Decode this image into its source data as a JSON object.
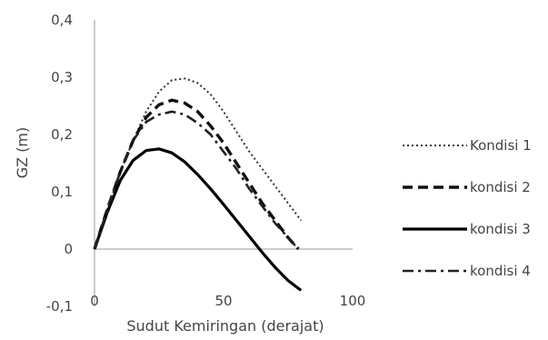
{
  "chart_data": {
    "type": "line",
    "title": "",
    "xlabel": "Sudut Kemiringan (derajat)",
    "ylabel": "GZ (m)",
    "xlim": [
      0,
      100
    ],
    "ylim": [
      -0.1,
      0.4
    ],
    "x_ticks": [
      0,
      50,
      100
    ],
    "x_tick_labels": [
      "0",
      "50",
      "100"
    ],
    "y_ticks": [
      -0.1,
      0,
      0.1,
      0.2,
      0.3,
      0.4
    ],
    "y_tick_labels": [
      "-0,1",
      "0",
      "0,1",
      "0,2",
      "0,3",
      "0,4"
    ],
    "grid": false,
    "legend_position": "right",
    "series": [
      {
        "name": "Kondisi 1",
        "style": "dotted",
        "color": "#333333",
        "x": [
          0,
          5,
          10,
          15,
          20,
          25,
          30,
          35,
          40,
          45,
          50,
          55,
          60,
          65,
          70,
          75,
          80
        ],
        "y": [
          0.0,
          0.07,
          0.135,
          0.19,
          0.24,
          0.275,
          0.295,
          0.298,
          0.29,
          0.27,
          0.24,
          0.205,
          0.17,
          0.14,
          0.11,
          0.08,
          0.05
        ]
      },
      {
        "name": "kondisi 2",
        "style": "dashed",
        "color": "#111111",
        "x": [
          0,
          5,
          10,
          15,
          20,
          25,
          30,
          35,
          40,
          45,
          50,
          55,
          60,
          65,
          70,
          75,
          79
        ],
        "y": [
          0.0,
          0.07,
          0.135,
          0.19,
          0.23,
          0.252,
          0.26,
          0.255,
          0.24,
          0.215,
          0.185,
          0.15,
          0.115,
          0.08,
          0.05,
          0.02,
          0.0
        ]
      },
      {
        "name": "kondisi 3",
        "style": "solid",
        "color": "#000000",
        "x": [
          0,
          5,
          10,
          15,
          20,
          25,
          30,
          35,
          40,
          45,
          50,
          55,
          60,
          65,
          70,
          75,
          80
        ],
        "y": [
          0.0,
          0.065,
          0.12,
          0.155,
          0.172,
          0.175,
          0.168,
          0.152,
          0.13,
          0.105,
          0.078,
          0.05,
          0.022,
          -0.006,
          -0.032,
          -0.055,
          -0.072
        ]
      },
      {
        "name": "kondisi 4",
        "style": "dashdot",
        "color": "#222222",
        "x": [
          0,
          5,
          10,
          15,
          20,
          25,
          30,
          35,
          40,
          45,
          50,
          55,
          60,
          65,
          70,
          75,
          78
        ],
        "y": [
          0.0,
          0.07,
          0.135,
          0.19,
          0.222,
          0.235,
          0.24,
          0.235,
          0.22,
          0.2,
          0.17,
          0.14,
          0.105,
          0.075,
          0.045,
          0.02,
          0.005
        ]
      }
    ]
  }
}
